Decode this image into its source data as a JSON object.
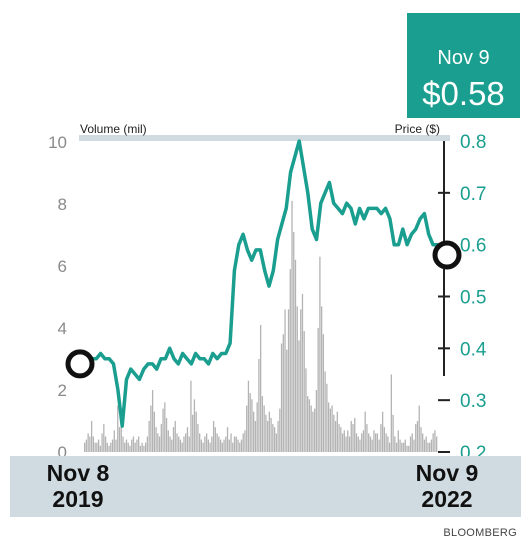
{
  "callout": {
    "date": "Nov 9",
    "value": "$0.58"
  },
  "source": "BLOOMBERG",
  "chart_data": {
    "type": "line",
    "xlabels": {
      "start": [
        "Nov 8",
        "2019"
      ],
      "end": [
        "Nov 9",
        "2022"
      ]
    },
    "left_axis": {
      "label": "Volume (mil)",
      "ticks": [
        "0",
        "2",
        "4",
        "6",
        "8",
        "10"
      ],
      "range": [
        0,
        10
      ]
    },
    "right_axis": {
      "label": "Price ($)",
      "ticks": [
        "0.2",
        "0.3",
        "0.4",
        "0.5",
        "0.6",
        "0.7",
        "0.8"
      ],
      "range": [
        0.2,
        0.8
      ]
    },
    "colors": {
      "price_line": "#1a9e8f",
      "volume_bars": "#b3b3b3",
      "axis_band": "#cfdbe0",
      "text": "#6e6e6e"
    },
    "series": [
      {
        "name": "Price ($)",
        "type": "line",
        "axis": "right",
        "start_value": 0.37,
        "end_value": 0.58,
        "values": [
          0.37,
          0.37,
          0.36,
          0.38,
          0.38,
          0.39,
          0.38,
          0.38,
          0.37,
          0.32,
          0.25,
          0.34,
          0.36,
          0.35,
          0.34,
          0.36,
          0.37,
          0.37,
          0.36,
          0.38,
          0.38,
          0.4,
          0.38,
          0.37,
          0.39,
          0.38,
          0.37,
          0.39,
          0.38,
          0.38,
          0.37,
          0.39,
          0.38,
          0.39,
          0.39,
          0.41,
          0.55,
          0.6,
          0.62,
          0.59,
          0.57,
          0.59,
          0.59,
          0.55,
          0.52,
          0.55,
          0.61,
          0.64,
          0.67,
          0.74,
          0.77,
          0.8,
          0.75,
          0.7,
          0.63,
          0.61,
          0.68,
          0.7,
          0.72,
          0.68,
          0.67,
          0.66,
          0.68,
          0.67,
          0.64,
          0.67,
          0.65,
          0.67,
          0.67,
          0.67,
          0.66,
          0.67,
          0.65,
          0.6,
          0.6,
          0.63,
          0.6,
          0.62,
          0.63,
          0.65,
          0.66,
          0.62,
          0.6,
          0.6,
          0.59,
          0.58
        ]
      },
      {
        "name": "Volume (mil)",
        "type": "bar",
        "axis": "left",
        "values": [
          0.3,
          0.4,
          0.6,
          0.5,
          1.0,
          0.5,
          0.3,
          0.3,
          0.4,
          0.2,
          0.6,
          0.9,
          0.5,
          0.3,
          0.2,
          0.3,
          0.4,
          0.7,
          0.4,
          1.5,
          0.8,
          1.2,
          0.5,
          0.3,
          0.4,
          0.3,
          0.2,
          0.4,
          0.5,
          0.3,
          0.4,
          0.5,
          0.2,
          0.3,
          0.2,
          0.3,
          0.5,
          1.0,
          1.5,
          2.0,
          1.3,
          0.8,
          0.6,
          0.5,
          0.9,
          1.4,
          1.6,
          1.1,
          0.7,
          0.5,
          0.4,
          0.8,
          1.0,
          0.6,
          0.5,
          0.4,
          0.3,
          0.5,
          0.6,
          0.8,
          0.5,
          2.3,
          1.2,
          1.7,
          1.3,
          0.9,
          0.6,
          0.4,
          0.3,
          0.5,
          0.6,
          0.4,
          0.3,
          0.5,
          1.0,
          0.8,
          0.6,
          0.5,
          0.4,
          0.3,
          0.4,
          0.5,
          0.8,
          0.4,
          0.6,
          0.3,
          0.5,
          0.5,
          0.4,
          0.3,
          0.4,
          0.6,
          0.7,
          1.5,
          2.3,
          1.9,
          1.7,
          1.3,
          1.0,
          1.6,
          3.0,
          4.1,
          1.8,
          1.5,
          1.2,
          1.0,
          1.3,
          1.1,
          0.9,
          0.8,
          0.6,
          1.0,
          1.4,
          3.5,
          3.8,
          4.6,
          3.3,
          4.6,
          5.9,
          8.1,
          7.1,
          6.2,
          4.7,
          3.6,
          4.6,
          5.1,
          3.9,
          2.7,
          1.8,
          1.7,
          1.5,
          1.3,
          1.4,
          2.0,
          4.0,
          6.3,
          4.7,
          3.8,
          2.6,
          2.2,
          1.6,
          1.4,
          1.5,
          1.2,
          1.0,
          1.3,
          0.9,
          0.8,
          0.6,
          0.7,
          0.5,
          0.7,
          0.5,
          1.0,
          0.9,
          1.1,
          0.6,
          0.5,
          0.4,
          0.6,
          0.7,
          1.3,
          0.9,
          0.6,
          0.5,
          0.4,
          0.7,
          0.6,
          0.6,
          0.4,
          0.9,
          1.3,
          0.8,
          0.6,
          0.5,
          0.3,
          2.5,
          1.2,
          0.5,
          0.3,
          0.7,
          0.4,
          0.3,
          0.3,
          0.4,
          0.2,
          0.2,
          0.5,
          0.6,
          0.4,
          0.9,
          1.0,
          1.5,
          0.8,
          0.6,
          0.4,
          0.5,
          0.3,
          0.3,
          0.4,
          0.6,
          0.7,
          0.5
        ]
      }
    ]
  }
}
